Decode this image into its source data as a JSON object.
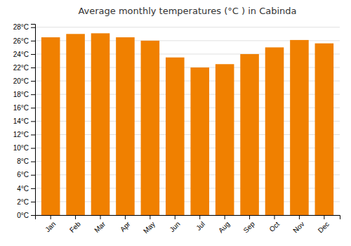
{
  "chart_data": {
    "type": "bar",
    "title": "Average monthly temperatures (°C ) in Cabinda",
    "categories": [
      "Jan",
      "Feb",
      "Mar",
      "Apr",
      "May",
      "Jun",
      "Jul",
      "Aug",
      "Sep",
      "Oct",
      "Nov",
      "Dec"
    ],
    "values": [
      26.5,
      27.0,
      27.1,
      26.5,
      26.0,
      23.5,
      22.0,
      22.5,
      24.0,
      25.0,
      26.1,
      25.6
    ],
    "color": "#F08000",
    "ylim": [
      0,
      28.5
    ],
    "yticks": [
      {
        "value": 0,
        "label": "0°C"
      },
      {
        "value": 2,
        "label": "2°C"
      },
      {
        "value": 4,
        "label": "4°C"
      },
      {
        "value": 6,
        "label": "6°C"
      },
      {
        "value": 8,
        "label": "8°C"
      },
      {
        "value": 10,
        "label": "10°C"
      },
      {
        "value": 12,
        "label": "12°C"
      },
      {
        "value": 14,
        "label": "14°C"
      },
      {
        "value": 16,
        "label": "16°C"
      },
      {
        "value": 18,
        "label": "18°C"
      },
      {
        "value": 20,
        "label": "20°C"
      },
      {
        "value": 22,
        "label": "22°C"
      },
      {
        "value": 24,
        "label": "24°C"
      },
      {
        "value": 26,
        "label": "26°C"
      },
      {
        "value": 28,
        "label": "28°C"
      }
    ],
    "grid": true
  }
}
